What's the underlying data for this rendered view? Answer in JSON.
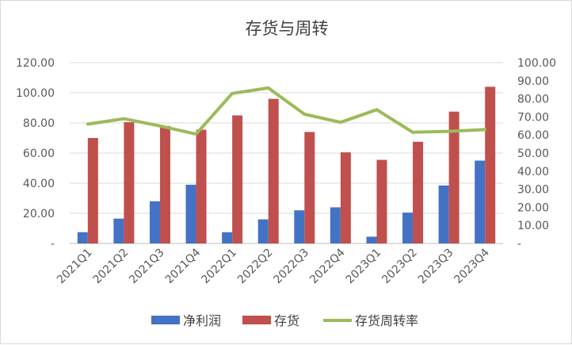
{
  "chart_data": {
    "type": "bar+line",
    "title": "存货与周转",
    "categories": [
      "2021Q1",
      "2021Q2",
      "2021Q3",
      "2021Q4",
      "2022Q1",
      "2022Q2",
      "2022Q3",
      "2022Q4",
      "2023Q1",
      "2023Q2",
      "2023Q3",
      "2023Q4"
    ],
    "series": [
      {
        "name": "净利润",
        "type": "bar",
        "axis": "left",
        "color": "#4472c4",
        "values": [
          7.5,
          16.5,
          28,
          39,
          7.5,
          16,
          22,
          24,
          4.5,
          20.5,
          38.5,
          55
        ]
      },
      {
        "name": "存货",
        "type": "bar",
        "axis": "left",
        "color": "#c0504d",
        "values": [
          70,
          80.5,
          78,
          75.5,
          85,
          96,
          74,
          60.5,
          55.5,
          67.5,
          87.5,
          104
        ]
      },
      {
        "name": "存货周转率",
        "type": "line",
        "axis": "right",
        "color": "#9bbb59",
        "values": [
          66,
          69,
          65,
          60.5,
          83,
          86,
          71.5,
          67,
          74,
          61.5,
          62,
          63
        ]
      }
    ],
    "left_axis": {
      "min": 0,
      "max": 120,
      "ticks": [
        "-",
        "20.00",
        "40.00",
        "60.00",
        "80.00",
        "100.00",
        "120.00"
      ]
    },
    "right_axis": {
      "min": 0,
      "max": 100,
      "ticks": [
        "-",
        "10.00",
        "20.00",
        "30.00",
        "40.00",
        "50.00",
        "60.00",
        "70.00",
        "80.00",
        "90.00",
        "100.00"
      ]
    },
    "legend": {
      "position": "bottom",
      "entries": [
        "净利润",
        "存货",
        "存货周转率"
      ]
    }
  }
}
